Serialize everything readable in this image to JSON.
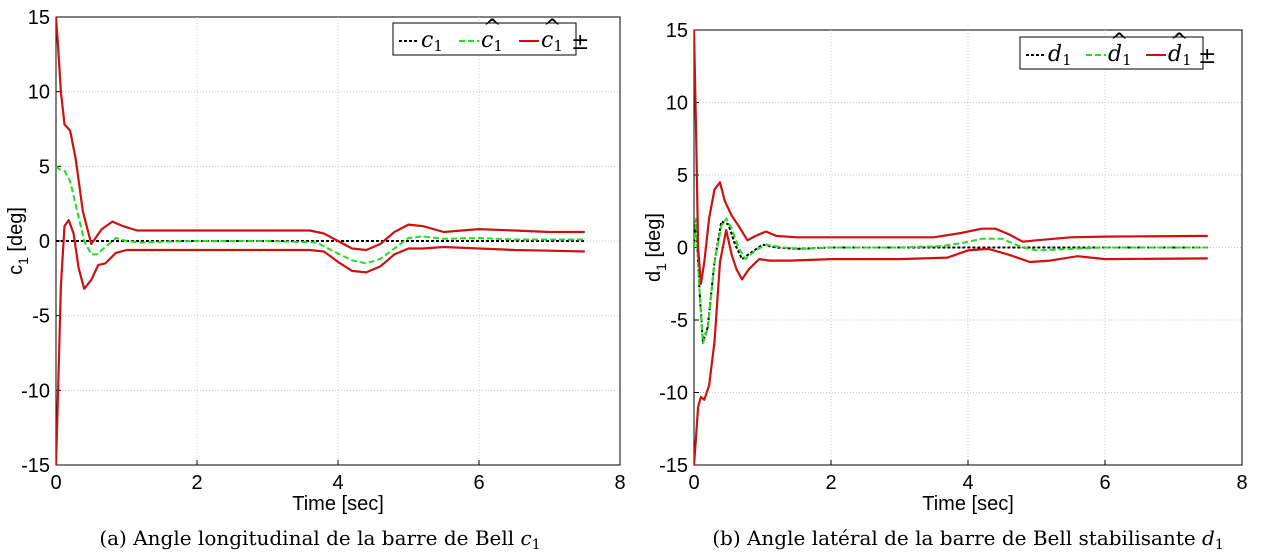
{
  "chart_data": [
    {
      "type": "line",
      "xlabel": "Time [sec]",
      "ylabel": "c",
      "ylabel_subscript": "1",
      "ylabel_unit": "[deg]",
      "xlim": [
        0,
        8
      ],
      "ylim": [
        -15,
        15
      ],
      "xticks": [
        "0",
        "2",
        "4",
        "6",
        "8"
      ],
      "yticks": [
        "15",
        "10",
        "5",
        "0",
        "-5",
        "-10",
        "-15"
      ],
      "grid": true,
      "legend_position": "top-right",
      "caption": {
        "prefix": "(a) Angle longitudinal de la barre de Bell ",
        "var": "c",
        "sub": "1"
      },
      "legend": [
        {
          "symbol": "c",
          "sub": "1",
          "hat": false,
          "pm": false
        },
        {
          "symbol": "c",
          "sub": "1",
          "hat": true,
          "pm": false
        },
        {
          "symbol": "c",
          "sub": "1",
          "hat": true,
          "pm": true
        }
      ],
      "series": [
        {
          "color": "#000000",
          "dash": "3,2",
          "x": [
            0,
            0.5,
            1,
            2,
            3,
            4,
            4.4,
            5,
            6,
            7.5
          ],
          "y": [
            0,
            0,
            0,
            0,
            0,
            0,
            0,
            0,
            0,
            0
          ]
        },
        {
          "color": "#22dd22",
          "dash": "6,3",
          "x": [
            0,
            0.05,
            0.12,
            0.2,
            0.3,
            0.4,
            0.5,
            0.58,
            0.7,
            0.85,
            1.0,
            1.2,
            1.5,
            2,
            3,
            3.7,
            3.9,
            4.2,
            4.4,
            4.6,
            4.8,
            5.0,
            5.2,
            5.5,
            6,
            6.5,
            7.5
          ],
          "y": [
            5,
            4.8,
            4.7,
            4.0,
            2.0,
            0.0,
            -0.9,
            -0.9,
            -0.4,
            0.2,
            0.0,
            -0.1,
            -0.05,
            0,
            0,
            -0.1,
            -0.6,
            -1.3,
            -1.5,
            -1.2,
            -0.5,
            0.2,
            0.3,
            0.15,
            0.2,
            0.1,
            0.1
          ]
        },
        {
          "color": "#cc1111",
          "dash": "",
          "x": [
            0,
            0.03,
            0.07,
            0.12,
            0.2,
            0.28,
            0.38,
            0.5,
            0.56,
            0.65,
            0.8,
            0.95,
            1.15,
            1.5,
            2,
            3,
            3.6,
            3.8,
            4.0,
            4.2,
            4.4,
            4.6,
            4.8,
            5.0,
            5.2,
            5.5,
            6.0,
            6.5,
            7.0,
            7.5
          ],
          "y": [
            15,
            13,
            10,
            7.8,
            7.4,
            5.5,
            2.0,
            -0.2,
            0.2,
            0.8,
            1.3,
            1.0,
            0.7,
            0.7,
            0.7,
            0.7,
            0.7,
            0.5,
            0.0,
            -0.5,
            -0.6,
            -0.2,
            0.6,
            1.1,
            1.0,
            0.6,
            0.8,
            0.7,
            0.6,
            0.6
          ]
        },
        {
          "color": "#cc1111",
          "dash": "",
          "x": [
            0,
            0.03,
            0.07,
            0.12,
            0.18,
            0.25,
            0.32,
            0.4,
            0.5,
            0.6,
            0.7,
            0.85,
            1.0,
            1.5,
            2,
            3,
            3.6,
            3.8,
            4.0,
            4.2,
            4.4,
            4.6,
            4.8,
            5.0,
            5.2,
            5.5,
            6.0,
            6.5,
            7.0,
            7.5
          ],
          "y": [
            -15,
            -10,
            -3,
            1.0,
            1.4,
            0.5,
            -1.8,
            -3.2,
            -2.6,
            -1.6,
            -1.5,
            -0.8,
            -0.6,
            -0.6,
            -0.6,
            -0.6,
            -0.6,
            -0.7,
            -1.4,
            -2.0,
            -2.1,
            -1.7,
            -0.9,
            -0.5,
            -0.5,
            -0.4,
            -0.5,
            -0.6,
            -0.65,
            -0.7
          ]
        }
      ]
    },
    {
      "type": "line",
      "xlabel": "Time [sec]",
      "ylabel": "d",
      "ylabel_subscript": "1",
      "ylabel_unit": "[deg]",
      "xlim": [
        0,
        8
      ],
      "ylim": [
        -15,
        15
      ],
      "xticks": [
        "0",
        "2",
        "4",
        "6",
        "8"
      ],
      "yticks": [
        "15",
        "10",
        "5",
        "0",
        "-5",
        "-10",
        "-15"
      ],
      "grid": true,
      "legend_position": "top-right",
      "caption": {
        "prefix": "(b) Angle latéral de la barre de Bell stabilisante ",
        "var": "d",
        "sub": "1"
      },
      "legend": [
        {
          "symbol": "d",
          "sub": "1",
          "hat": false,
          "pm": false
        },
        {
          "symbol": "d",
          "sub": "1",
          "hat": true,
          "pm": false
        },
        {
          "symbol": "d",
          "sub": "1",
          "hat": true,
          "pm": true
        }
      ],
      "series": [
        {
          "color": "#000000",
          "dash": "3,2",
          "x": [
            0,
            0.03,
            0.08,
            0.13,
            0.2,
            0.3,
            0.4,
            0.5,
            0.6,
            0.7,
            0.85,
            1.0,
            1.2,
            1.5,
            2,
            3,
            4,
            5,
            6,
            7.5
          ],
          "y": [
            0,
            2.0,
            -3.0,
            -6.5,
            -5.5,
            -1.0,
            1.8,
            1.6,
            0.2,
            -0.8,
            -0.3,
            0.2,
            0.0,
            -0.1,
            0,
            0,
            0,
            0,
            0,
            0
          ]
        },
        {
          "color": "#22dd22",
          "dash": "6,3",
          "x": [
            0,
            0.03,
            0.08,
            0.13,
            0.2,
            0.3,
            0.4,
            0.47,
            0.55,
            0.65,
            0.75,
            0.9,
            1.05,
            1.3,
            1.6,
            2,
            3,
            3.6,
            3.9,
            4.2,
            4.5,
            4.8,
            5.0,
            5.5,
            6,
            7.5
          ],
          "y": [
            0,
            2.0,
            -3.0,
            -6.6,
            -5.6,
            -1.0,
            1.5,
            2.0,
            1.3,
            0.0,
            -0.8,
            -0.2,
            0.2,
            0.0,
            -0.1,
            0,
            0,
            0.1,
            0.3,
            0.6,
            0.6,
            0.0,
            -0.2,
            -0.1,
            0.0,
            0.0
          ]
        },
        {
          "color": "#cc1111",
          "dash": "",
          "x": [
            0,
            0.03,
            0.06,
            0.1,
            0.15,
            0.22,
            0.3,
            0.38,
            0.45,
            0.55,
            0.65,
            0.78,
            0.9,
            1.05,
            1.2,
            1.5,
            2,
            3,
            3.5,
            3.9,
            4.2,
            4.4,
            4.6,
            4.8,
            5.0,
            5.5,
            6,
            7.5
          ],
          "y": [
            15,
            8,
            0,
            -2.5,
            -1.0,
            2.0,
            4.0,
            4.5,
            3.2,
            2.2,
            1.5,
            0.5,
            0.8,
            1.1,
            0.8,
            0.7,
            0.7,
            0.7,
            0.7,
            1.0,
            1.3,
            1.3,
            0.9,
            0.4,
            0.5,
            0.7,
            0.75,
            0.8
          ]
        },
        {
          "color": "#cc1111",
          "dash": "",
          "x": [
            0,
            0.03,
            0.06,
            0.1,
            0.15,
            0.22,
            0.3,
            0.38,
            0.47,
            0.55,
            0.62,
            0.7,
            0.8,
            0.95,
            1.1,
            1.4,
            2,
            3,
            3.7,
            4.0,
            4.3,
            4.6,
            4.9,
            5.2,
            5.6,
            6,
            7.5
          ],
          "y": [
            -15,
            -13,
            -11,
            -10.3,
            -10.5,
            -9.5,
            -6.5,
            -1.0,
            1.2,
            -0.5,
            -1.5,
            -2.2,
            -1.5,
            -0.8,
            -0.9,
            -0.9,
            -0.8,
            -0.8,
            -0.7,
            -0.2,
            -0.1,
            -0.5,
            -1.0,
            -0.9,
            -0.6,
            -0.8,
            -0.75
          ]
        }
      ]
    }
  ]
}
